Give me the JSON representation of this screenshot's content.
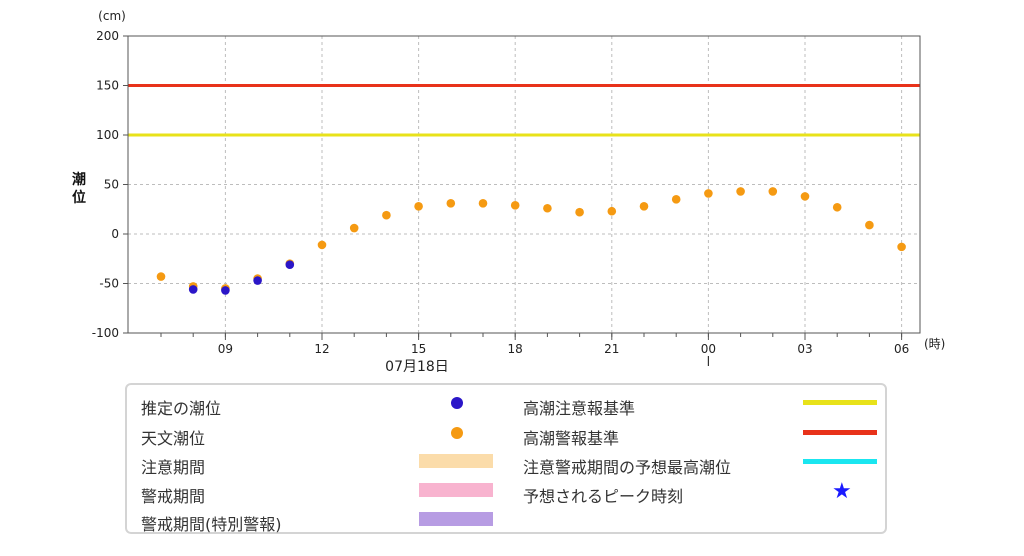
{
  "chart_data": {
    "type": "scatter",
    "y_unit": "(cm)",
    "x_unit": "(時)",
    "ylabel": "潮位",
    "ylim": [
      -100,
      200
    ],
    "y_ticks": [
      -100,
      -50,
      0,
      50,
      100,
      150,
      200
    ],
    "x_tick_labels": [
      "09",
      "12",
      "15",
      "18",
      "21",
      "00",
      "03",
      "06"
    ],
    "date_label": "07月18日",
    "grid": true,
    "thresholds": [
      {
        "name": "高潮注意報基準",
        "value": 100,
        "color": "#e8e21a"
      },
      {
        "name": "高潮警報基準",
        "value": 150,
        "color": "#e8321a"
      }
    ],
    "series": [
      {
        "name": "推定の潮位",
        "color": "#2b16c8",
        "points": [
          {
            "hour": 8,
            "value": -56
          },
          {
            "hour": 9,
            "value": -57
          },
          {
            "hour": 10,
            "value": -47
          },
          {
            "hour": 11,
            "value": -31
          }
        ]
      },
      {
        "name": "天文潮位",
        "color": "#f59a12",
        "points": [
          {
            "hour": 7,
            "value": -43
          },
          {
            "hour": 8,
            "value": -53
          },
          {
            "hour": 9,
            "value": -55
          },
          {
            "hour": 10,
            "value": -45
          },
          {
            "hour": 11,
            "value": -30
          },
          {
            "hour": 12,
            "value": -11
          },
          {
            "hour": 13,
            "value": 6
          },
          {
            "hour": 14,
            "value": 19
          },
          {
            "hour": 15,
            "value": 28
          },
          {
            "hour": 16,
            "value": 31
          },
          {
            "hour": 17,
            "value": 31
          },
          {
            "hour": 18,
            "value": 29
          },
          {
            "hour": 19,
            "value": 26
          },
          {
            "hour": 20,
            "value": 22
          },
          {
            "hour": 21,
            "value": 23
          },
          {
            "hour": 22,
            "value": 28
          },
          {
            "hour": 23,
            "value": 35
          },
          {
            "hour": 24,
            "value": 41
          },
          {
            "hour": 25,
            "value": 43
          },
          {
            "hour": 26,
            "value": 43
          },
          {
            "hour": 27,
            "value": 38
          },
          {
            "hour": 28,
            "value": 27
          },
          {
            "hour": 29,
            "value": 9
          },
          {
            "hour": 30,
            "value": -13
          }
        ]
      }
    ]
  },
  "legend": {
    "estimated_tide": {
      "label": "推定の潮位",
      "color": "#2b16c8"
    },
    "astronomical_tide": {
      "label": "天文潮位",
      "color": "#f59a12"
    },
    "caution_period": {
      "label": "注意期間",
      "color": "#fbdcaa"
    },
    "warning_period": {
      "label": "警戒期間",
      "color": "#f8b3cf"
    },
    "warning_period_special": {
      "label": "警戒期間(特別警報)",
      "color": "#b79ce3"
    },
    "storm_surge_advisory": {
      "label": "高潮注意報基準",
      "color": "#e8e21a"
    },
    "storm_surge_warning": {
      "label": "高潮警報基準",
      "color": "#e8321a"
    },
    "forecast_peak_level": {
      "label": "注意警戒期間の予想最高潮位",
      "color": "#1ae6f0"
    },
    "expected_peak_time": {
      "label": "予想されるピーク時刻",
      "color": "#1a1aff"
    }
  }
}
